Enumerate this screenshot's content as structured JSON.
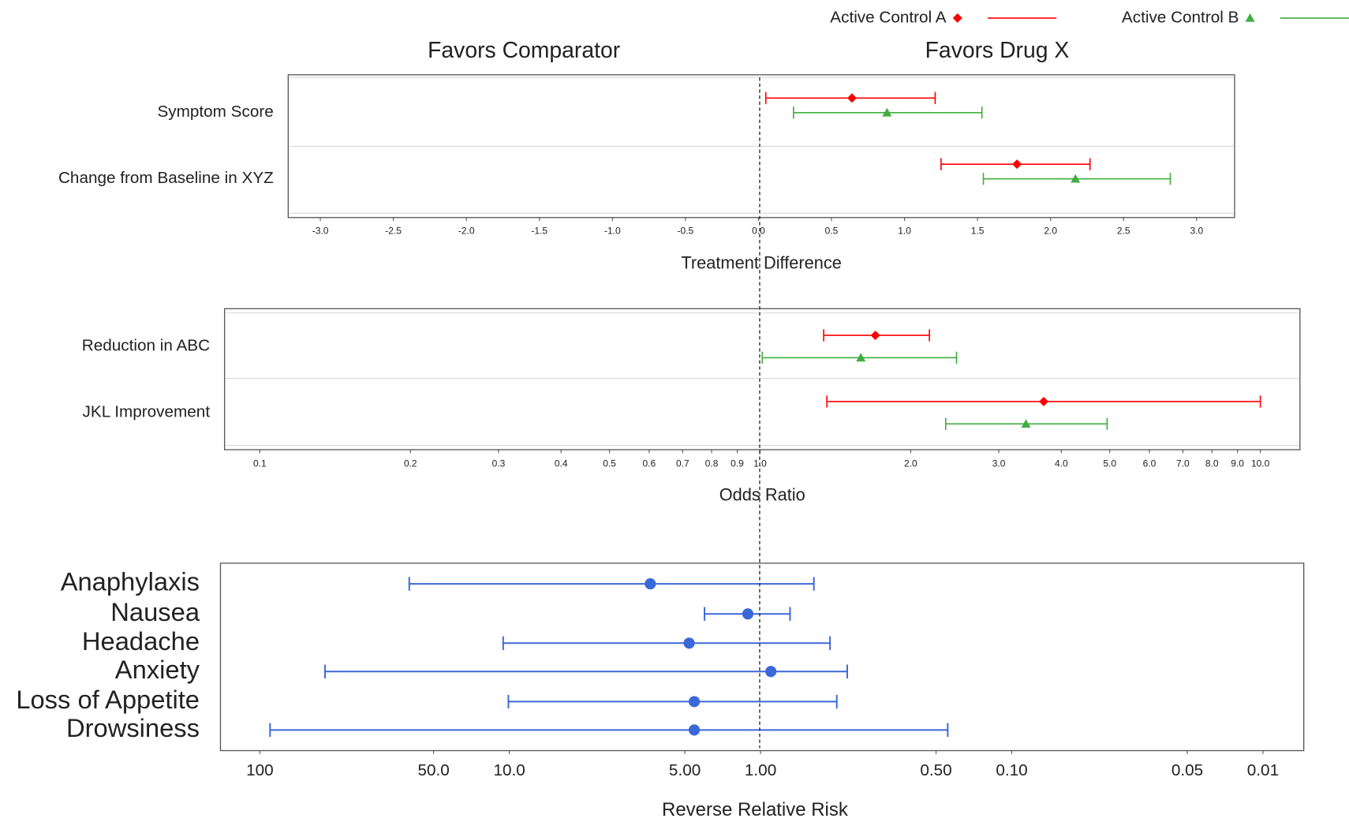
{
  "chart_data": [
    {
      "type": "forest",
      "annotations": [
        "Favors Comparator",
        "Favors Drug X"
      ],
      "categories": [
        "Symptom Score",
        "Change from Baseline in XYZ"
      ],
      "series": [
        {
          "name": "Active Control A",
          "color": "#ff0000",
          "marker": "diamond",
          "values": [
            0.64,
            1.77
          ],
          "lower": [
            0.05,
            1.25
          ],
          "upper": [
            1.21,
            2.27
          ]
        },
        {
          "name": "Active Control B",
          "color": "#3fae3f",
          "marker": "triangle",
          "values": [
            0.88,
            2.17
          ],
          "lower": [
            0.24,
            1.54
          ],
          "upper": [
            1.53,
            2.82
          ]
        }
      ],
      "xlabel": "Treatment Difference",
      "xscale": "linear",
      "xlim": [
        -3.22,
        3.26
      ],
      "xticks": [
        {
          "value": -3,
          "label": "-3.0"
        },
        -2.5,
        {
          "value": -2,
          "label": "-2.0"
        },
        -1.5,
        {
          "value": -1,
          "label": "-1.0"
        },
        -0.5,
        {
          "value": 0,
          "label": "0.0"
        },
        0.5,
        {
          "value": 1,
          "label": "1.0"
        },
        1.5,
        {
          "value": 2,
          "label": "2.0"
        },
        2.5,
        {
          "value": 3,
          "label": "3.0"
        }
      ]
    },
    {
      "type": "forest",
      "categories": [
        "Reduction in ABC",
        "JKL Improvement"
      ],
      "series": [
        {
          "color": "#ff0000",
          "marker": "diamond",
          "values": [
            1.7,
            3.69
          ],
          "lower": [
            1.34,
            1.36
          ],
          "upper": [
            2.18,
            10.0
          ]
        },
        {
          "color": "#3fae3f",
          "marker": "triangle",
          "values": [
            1.59,
            3.4
          ],
          "lower": [
            1.01,
            2.35
          ],
          "upper": [
            2.47,
            4.94
          ]
        }
      ],
      "xlabel": "Odds Ratio",
      "xscale": "log",
      "xlim": [
        0.085,
        12.0
      ],
      "xticks": [
        0.1,
        0.2,
        0.3,
        0.4,
        0.5,
        0.6,
        0.7,
        0.8,
        0.9,
        {
          "value": 1,
          "label": "1.0"
        },
        {
          "value": 2,
          "label": "2.0"
        },
        {
          "value": 3,
          "label": "3.0"
        },
        {
          "value": 4,
          "label": "4.0"
        },
        {
          "value": 5,
          "label": "5.0"
        },
        {
          "value": 6,
          "label": "6.0"
        },
        {
          "value": 7,
          "label": "7.0"
        },
        {
          "value": 8,
          "label": "8.0"
        },
        {
          "value": 9,
          "label": "9.0"
        },
        {
          "value": 10,
          "label": "10.0"
        }
      ]
    },
    {
      "type": "forest",
      "categories": [
        "Anaphylaxis",
        "Nausea",
        "Headache",
        "Anxiety",
        "Loss of Appetite",
        "Drowsiness"
      ],
      "series": [
        {
          "color": "#3b68d8",
          "marker": "circle",
          "values": [
            5.73,
            1.31,
            4.56,
            0.96,
            4.09,
            4.09
          ],
          "lower": [
            0.81,
            0.89,
            0.76,
            0.71,
            0.74,
            0.39
          ],
          "upper": [
            55.1,
            3.29,
            11.4,
            77.1,
            10.2,
            96.0
          ]
        }
      ],
      "xlabel": "Reverse Relative Risk",
      "xscale": "log-reversed",
      "xlim": [
        117,
        0.0042
      ],
      "xticks": [
        100,
        {
          "value": 50,
          "label": "50.0"
        },
        {
          "value": 10,
          "label": "10.0"
        },
        {
          "value": 5,
          "label": "5.00"
        },
        {
          "value": 1,
          "label": "1.00"
        },
        {
          "value": 0.5,
          "label": "0.50"
        },
        {
          "value": 0.1,
          "label": "0.10"
        },
        0.05,
        0.01
      ]
    }
  ]
}
